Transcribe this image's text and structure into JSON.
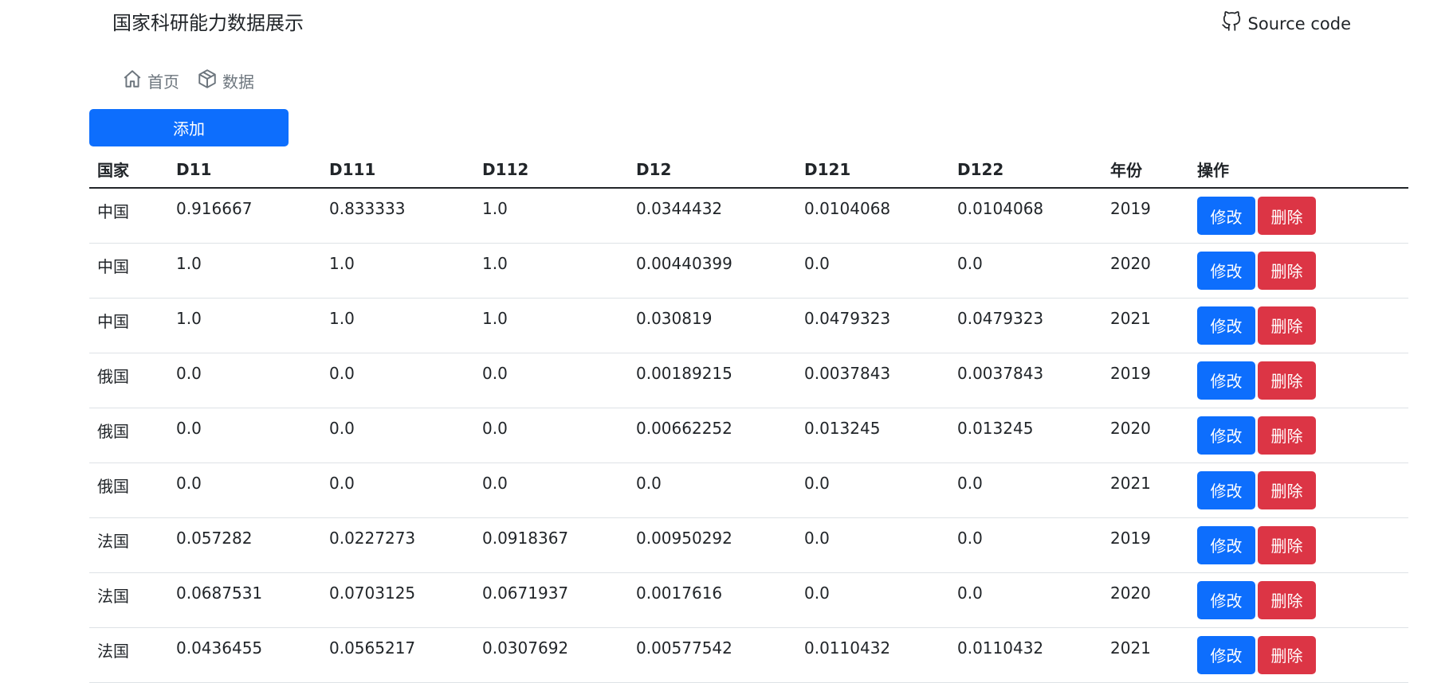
{
  "header": {
    "title": "国家科研能力数据展示",
    "source_label": "Source code"
  },
  "nav": [
    {
      "label": "首页",
      "icon": "home-icon"
    },
    {
      "label": "数据",
      "icon": "box-icon"
    }
  ],
  "toolbar": {
    "add_label": "添加"
  },
  "table": {
    "columns": [
      "国家",
      "D11",
      "D111",
      "D112",
      "D12",
      "D121",
      "D122",
      "年份",
      "操作"
    ],
    "rows": [
      [
        "中国",
        "0.916667",
        "0.833333",
        "1.0",
        "0.0344432",
        "0.0104068",
        "0.0104068",
        "2019"
      ],
      [
        "中国",
        "1.0",
        "1.0",
        "1.0",
        "0.00440399",
        "0.0",
        "0.0",
        "2020"
      ],
      [
        "中国",
        "1.0",
        "1.0",
        "1.0",
        "0.030819",
        "0.0479323",
        "0.0479323",
        "2021"
      ],
      [
        "俄国",
        "0.0",
        "0.0",
        "0.0",
        "0.00189215",
        "0.0037843",
        "0.0037843",
        "2019"
      ],
      [
        "俄国",
        "0.0",
        "0.0",
        "0.0",
        "0.00662252",
        "0.013245",
        "0.013245",
        "2020"
      ],
      [
        "俄国",
        "0.0",
        "0.0",
        "0.0",
        "0.0",
        "0.0",
        "0.0",
        "2021"
      ],
      [
        "法国",
        "0.057282",
        "0.0227273",
        "0.0918367",
        "0.00950292",
        "0.0",
        "0.0",
        "2019"
      ],
      [
        "法国",
        "0.0687531",
        "0.0703125",
        "0.0671937",
        "0.0017616",
        "0.0",
        "0.0",
        "2020"
      ],
      [
        "法国",
        "0.0436455",
        "0.0565217",
        "0.0307692",
        "0.00577542",
        "0.0110432",
        "0.0110432",
        "2021"
      ]
    ],
    "edit_label": "修改",
    "delete_label": "删除"
  },
  "colors": {
    "primary": "#0d6efd",
    "danger": "#dc3545",
    "muted": "#6c757d"
  }
}
